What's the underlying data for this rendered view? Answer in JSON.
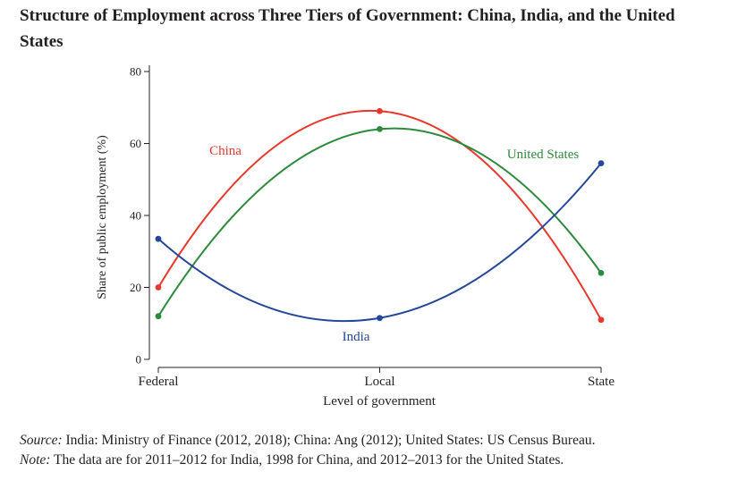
{
  "chart_data": {
    "type": "line",
    "title": "Structure of Employment across Three Tiers of Government: China, India, and the United States",
    "xlabel": "Level of government",
    "ylabel": "Share of public employment (%)",
    "categories": [
      "Federal",
      "Local",
      "State"
    ],
    "ylim": [
      0,
      80
    ],
    "yticks": [
      0,
      20,
      40,
      60,
      80
    ],
    "smooth": true,
    "grid": false,
    "legend": "inline labels",
    "series": [
      {
        "name": "China",
        "label": "China",
        "color": "#e8372c",
        "values": [
          20,
          69,
          11
        ]
      },
      {
        "name": "United States",
        "label": "United States",
        "color": "#2c8a3c",
        "values": [
          12,
          64,
          24
        ]
      },
      {
        "name": "India",
        "label": "India",
        "color": "#24479a",
        "values": [
          33.5,
          11.5,
          54.5
        ]
      }
    ]
  },
  "notes": {
    "source_label": "Source:",
    "source_text": " India: Ministry of Finance (2012, 2018); China: Ang (2012); United States: US Census Bureau.",
    "note_label": "Note:",
    "note_text": " The data are for 2011–2012 for India, 1998 for China, and 2012–2013 for the United States."
  }
}
